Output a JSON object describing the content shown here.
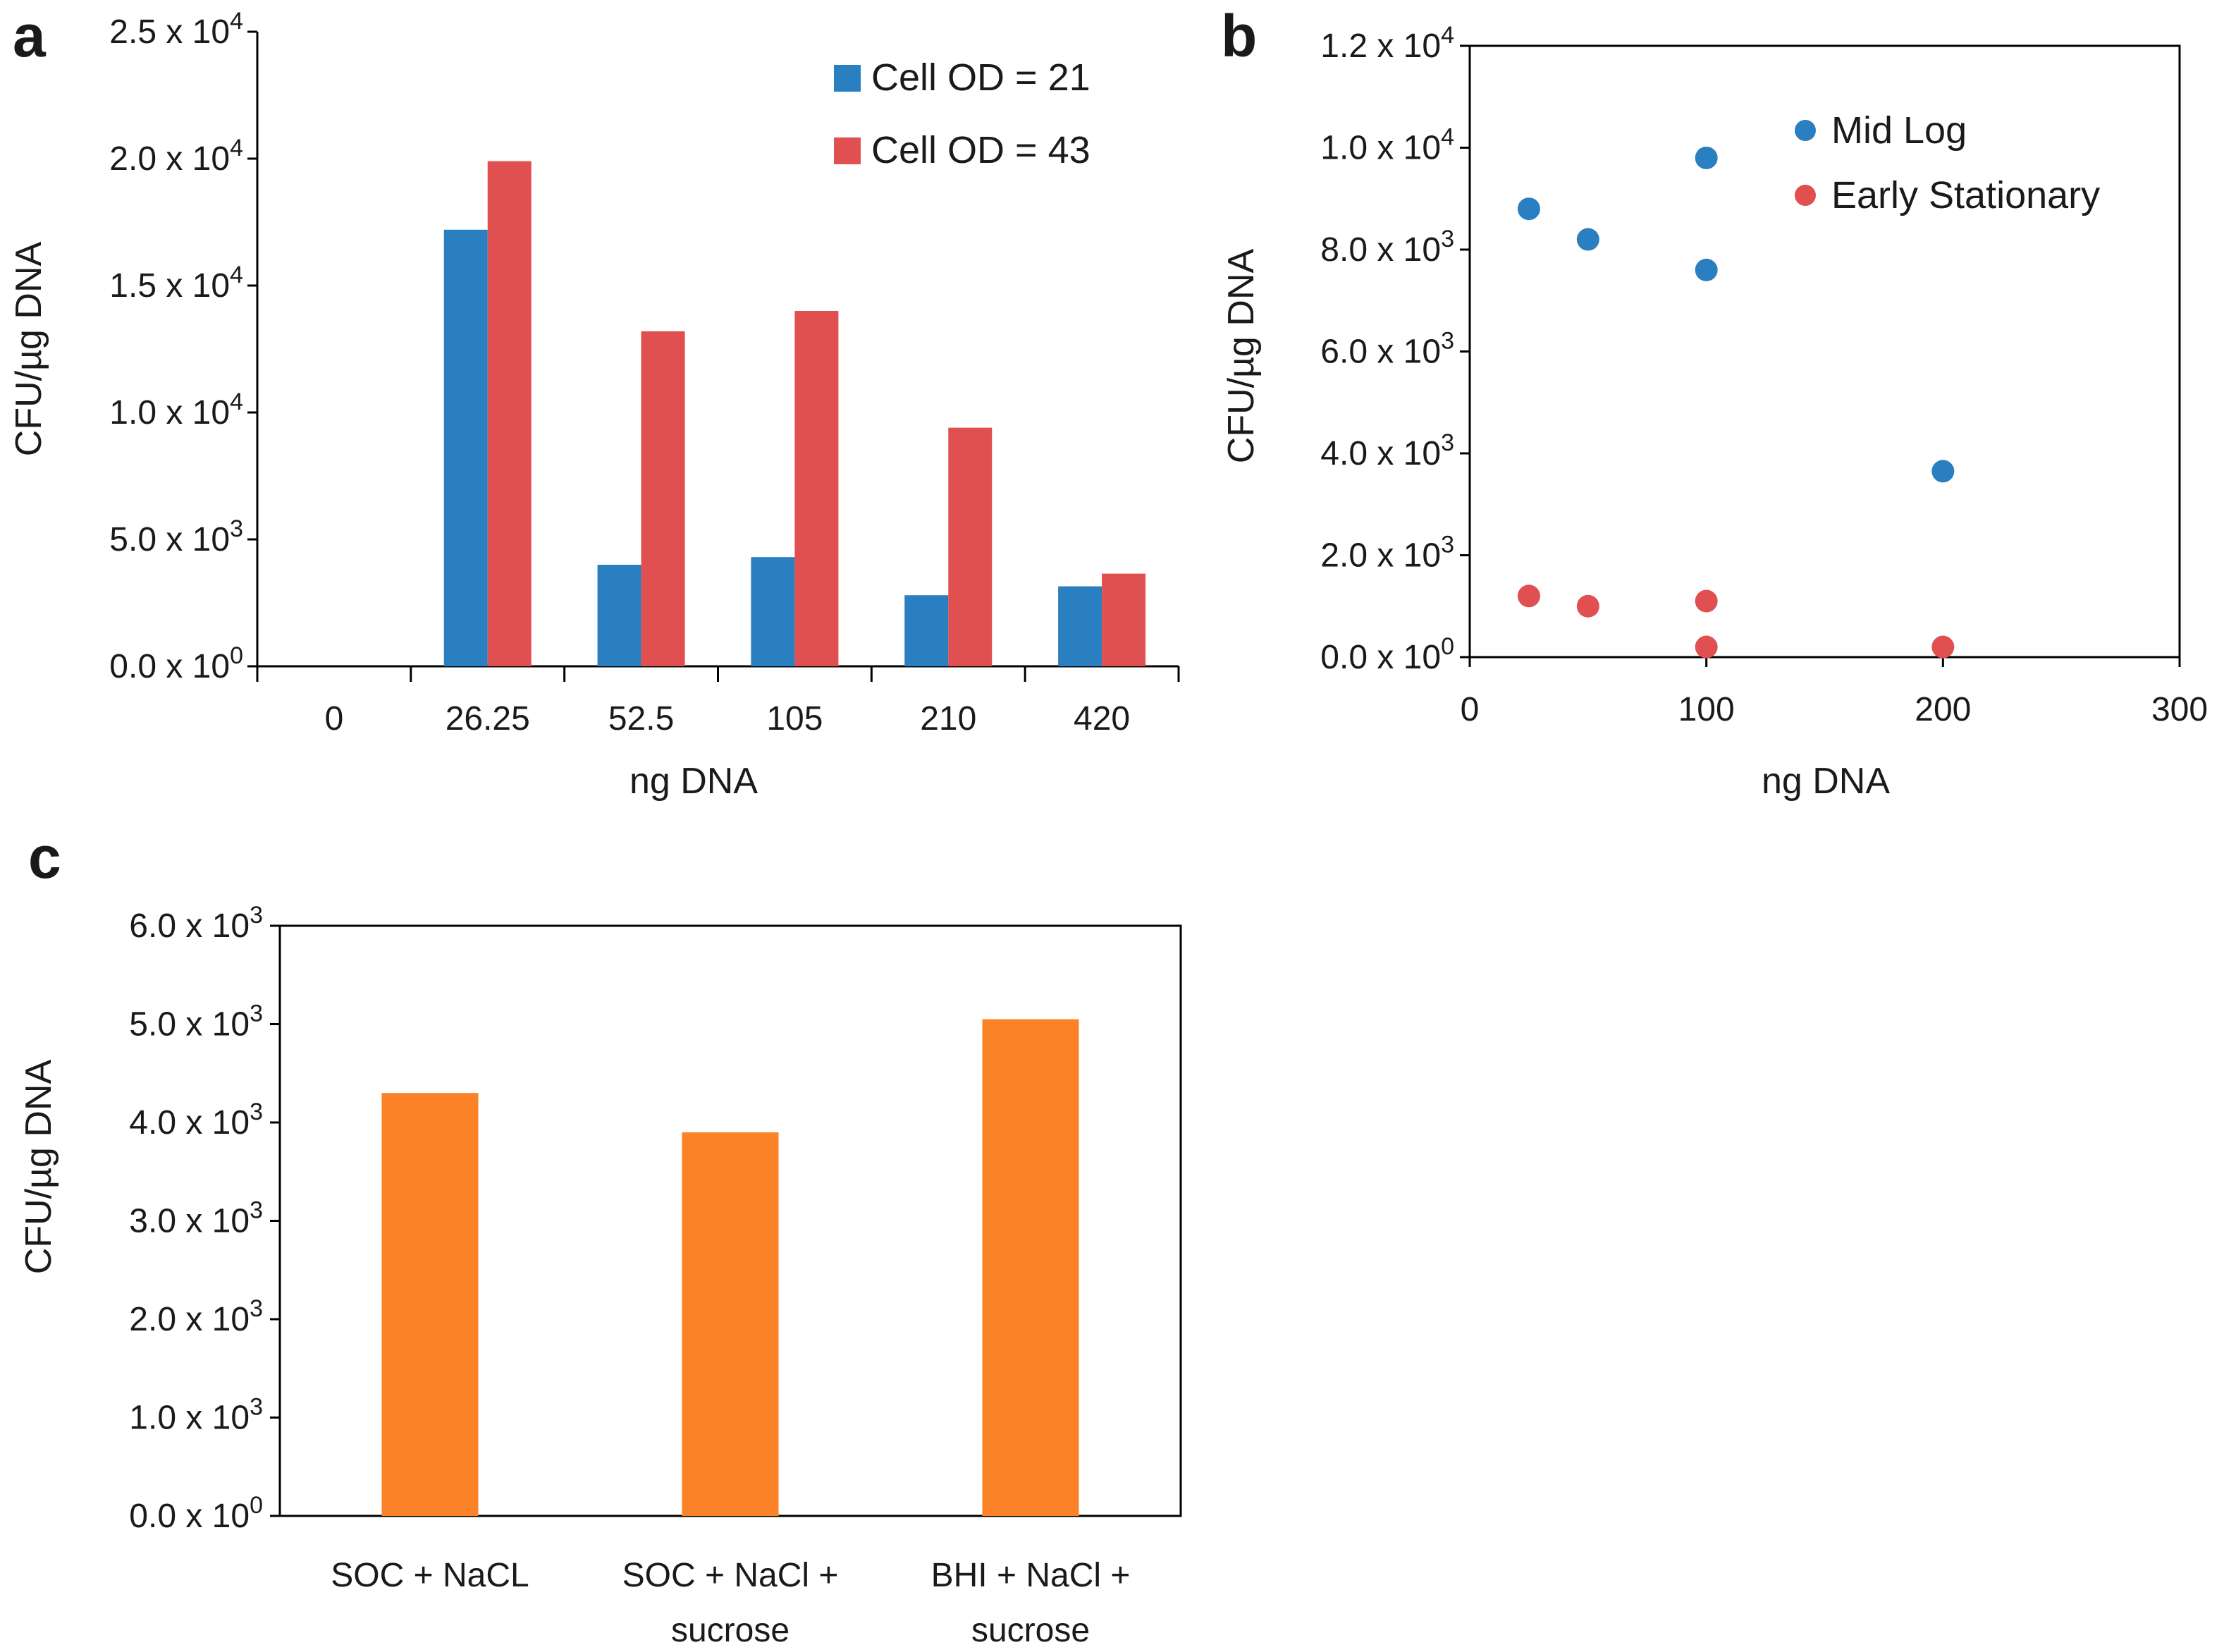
{
  "chart_data": [
    {
      "panel": "a",
      "type": "bar",
      "xlabel": "ng DNA",
      "ylabel": "CFU/µg DNA",
      "ylim": [
        0,
        25000
      ],
      "yticks": [
        {
          "value": 0,
          "mantissa": "0.0",
          "exp": "0"
        },
        {
          "value": 5000,
          "mantissa": "5.0",
          "exp": "3"
        },
        {
          "value": 10000,
          "mantissa": "1.0",
          "exp": "4"
        },
        {
          "value": 15000,
          "mantissa": "1.5",
          "exp": "4"
        },
        {
          "value": 20000,
          "mantissa": "2.0",
          "exp": "4"
        },
        {
          "value": 25000,
          "mantissa": "2.5",
          "exp": "4"
        }
      ],
      "categories": [
        "0",
        "26.25",
        "52.5",
        "105",
        "210",
        "420"
      ],
      "series": [
        {
          "name": "Cell OD = 21",
          "color": "#2a7fc1",
          "values": [
            0,
            17200,
            4000,
            4300,
            2800,
            3150
          ]
        },
        {
          "name": "Cell OD = 43",
          "color": "#e05050",
          "values": [
            0,
            19900,
            13200,
            14000,
            9400,
            3650
          ]
        }
      ],
      "legend_position": "top-right"
    },
    {
      "panel": "b",
      "type": "scatter",
      "xlabel": "ng DNA",
      "ylabel": "CFU/µg DNA",
      "xlim": [
        0,
        300
      ],
      "ylim": [
        0,
        12000
      ],
      "xticks": [
        "0",
        "100",
        "200",
        "300"
      ],
      "yticks": [
        {
          "value": 0,
          "mantissa": "0.0",
          "exp": "0"
        },
        {
          "value": 2000,
          "mantissa": "2.0",
          "exp": "3"
        },
        {
          "value": 4000,
          "mantissa": "4.0",
          "exp": "3"
        },
        {
          "value": 6000,
          "mantissa": "6.0",
          "exp": "3"
        },
        {
          "value": 8000,
          "mantissa": "8.0",
          "exp": "3"
        },
        {
          "value": 10000,
          "mantissa": "1.0",
          "exp": "4"
        },
        {
          "value": 12000,
          "mantissa": "1.2",
          "exp": "4"
        }
      ],
      "series": [
        {
          "name": "Mid Log",
          "color": "#2a7fc1",
          "points": [
            [
              25,
              8800
            ],
            [
              50,
              8200
            ],
            [
              100,
              9800
            ],
            [
              100,
              7600
            ],
            [
              200,
              3650
            ]
          ]
        },
        {
          "name": "Early Stationary",
          "color": "#e05050",
          "points": [
            [
              25,
              1200
            ],
            [
              50,
              1000
            ],
            [
              100,
              1100
            ],
            [
              100,
              200
            ],
            [
              200,
              200
            ]
          ]
        }
      ],
      "legend_position": "top-right"
    },
    {
      "panel": "c",
      "type": "bar",
      "xlabel": "",
      "ylabel": "CFU/µg DNA",
      "ylim": [
        0,
        6000
      ],
      "yticks": [
        {
          "value": 0,
          "mantissa": "0.0",
          "exp": "0"
        },
        {
          "value": 1000,
          "mantissa": "1.0",
          "exp": "3"
        },
        {
          "value": 2000,
          "mantissa": "2.0",
          "exp": "3"
        },
        {
          "value": 3000,
          "mantissa": "3.0",
          "exp": "3"
        },
        {
          "value": 4000,
          "mantissa": "4.0",
          "exp": "3"
        },
        {
          "value": 5000,
          "mantissa": "5.0",
          "exp": "3"
        },
        {
          "value": 6000,
          "mantissa": "6.0",
          "exp": "3"
        }
      ],
      "categories": [
        [
          "SOC + NaCL"
        ],
        [
          "SOC + NaCl +",
          "sucrose"
        ],
        [
          "BHI + NaCl +",
          "sucrose"
        ]
      ],
      "series": [
        {
          "name": "",
          "color": "#fb8226",
          "values": [
            4300,
            3900,
            5050
          ]
        }
      ]
    }
  ],
  "tick_times": "x 10"
}
